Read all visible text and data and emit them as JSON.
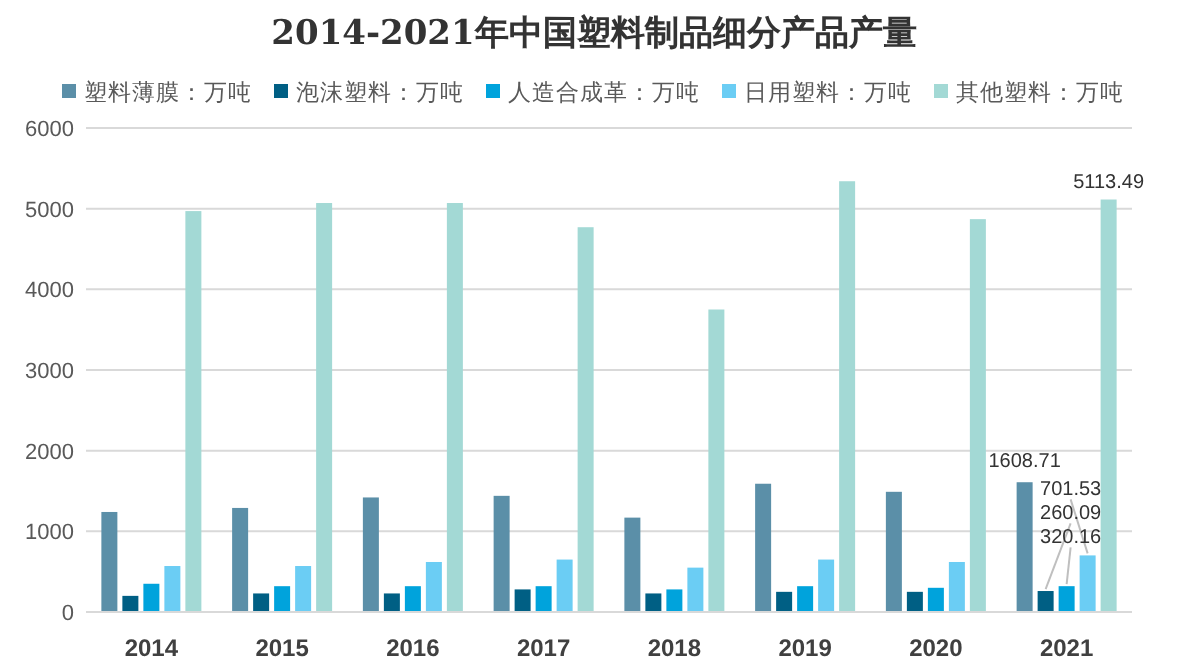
{
  "chart_data": {
    "type": "bar",
    "title": "2014-2021年中国塑料制品细分产品产量",
    "categories": [
      "2014",
      "2015",
      "2016",
      "2017",
      "2018",
      "2019",
      "2020",
      "2021"
    ],
    "series": [
      {
        "name": "塑料薄膜：万吨",
        "color": "#5b8fa8",
        "values": [
          1240,
          1290,
          1420,
          1440,
          1170,
          1590,
          1490,
          1608.71
        ],
        "value_labels": [
          null,
          null,
          null,
          null,
          null,
          null,
          null,
          "1608.71"
        ]
      },
      {
        "name": "泡沫塑料：万吨",
        "color": "#005f84",
        "values": [
          200,
          230,
          230,
          280,
          230,
          250,
          250,
          260.09
        ],
        "value_labels": [
          null,
          null,
          null,
          null,
          null,
          null,
          null,
          "260.09"
        ]
      },
      {
        "name": "人造合成革：万吨",
        "color": "#00a3dc",
        "values": [
          350,
          320,
          320,
          320,
          280,
          320,
          300,
          320.16
        ],
        "value_labels": [
          null,
          null,
          null,
          null,
          null,
          null,
          null,
          "320.16"
        ]
      },
      {
        "name": "日用塑料：万吨",
        "color": "#6bcdf4",
        "values": [
          570,
          570,
          620,
          650,
          550,
          650,
          620,
          701.53
        ],
        "value_labels": [
          null,
          null,
          null,
          null,
          null,
          null,
          null,
          "701.53"
        ]
      },
      {
        "name": "其他塑料：万吨",
        "color": "#a3d9d5",
        "values": [
          4970,
          5070,
          5070,
          4770,
          3750,
          5340,
          4870,
          5113.49
        ],
        "value_labels": [
          null,
          null,
          null,
          null,
          null,
          null,
          null,
          "5113.49"
        ]
      }
    ],
    "ylim": [
      0,
      6000
    ],
    "yticks": [
      0,
      1000,
      2000,
      3000,
      4000,
      5000,
      6000
    ],
    "grid": "y",
    "legend": "top"
  }
}
